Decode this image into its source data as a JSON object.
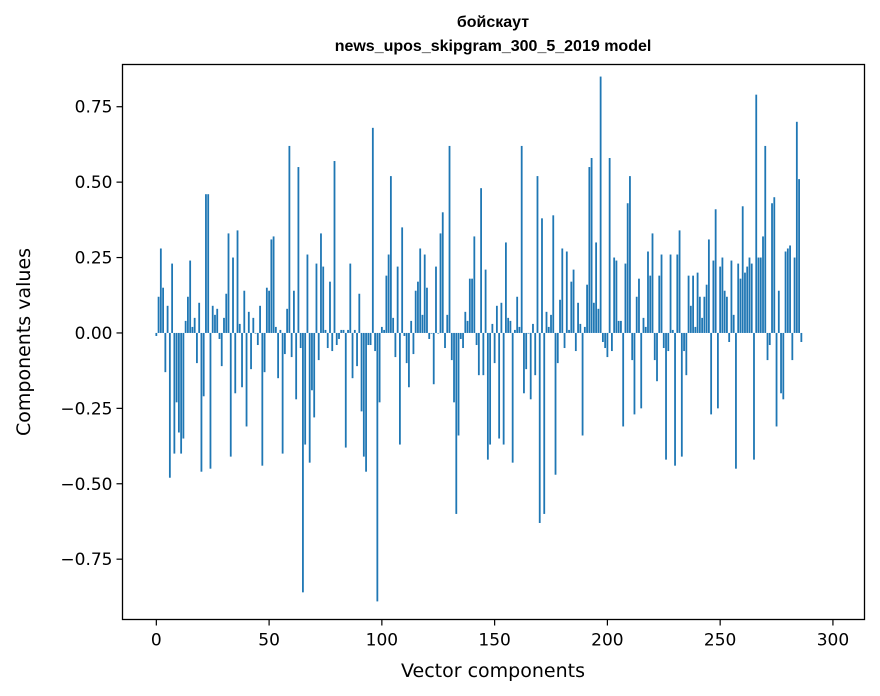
{
  "chart_data": {
    "type": "bar",
    "title": "бойскаут",
    "subtitle": "news_upos_skipgram_300_5_2019 model",
    "xlabel": "Vector components",
    "ylabel": "Components values",
    "xlim": [
      -15,
      314
    ],
    "ylim": [
      -0.95,
      0.89
    ],
    "xticks": [
      0,
      50,
      100,
      150,
      200,
      250,
      300
    ],
    "yticks": [
      -0.75,
      -0.5,
      -0.25,
      0.0,
      0.25,
      0.5,
      0.75
    ],
    "ytick_labels": [
      "−0.75",
      "−0.50",
      "−0.25",
      "0.00",
      "0.25",
      "0.50",
      "0.75"
    ],
    "grid": false,
    "bar_color": "#1f77b4",
    "x_start": 0,
    "values": [
      -0.01,
      0.12,
      0.28,
      0.15,
      -0.13,
      0.09,
      -0.48,
      0.23,
      -0.4,
      -0.23,
      -0.33,
      -0.4,
      -0.35,
      0.04,
      0.12,
      0.24,
      0.02,
      0.05,
      -0.1,
      0.1,
      -0.46,
      -0.21,
      0.46,
      0.46,
      -0.45,
      0.09,
      0.06,
      0.08,
      -0.02,
      -0.11,
      0.05,
      0.13,
      0.33,
      -0.41,
      0.25,
      -0.2,
      0.34,
      0.03,
      -0.18,
      0.14,
      -0.31,
      0.07,
      -0.12,
      0.05,
      0.0,
      -0.04,
      0.09,
      -0.44,
      -0.13,
      0.15,
      0.14,
      0.31,
      0.32,
      0.02,
      -0.15,
      0.01,
      -0.4,
      -0.07,
      0.08,
      0.62,
      -0.08,
      0.14,
      -0.22,
      0.55,
      -0.05,
      -0.86,
      -0.37,
      0.26,
      -0.43,
      -0.19,
      -0.28,
      0.23,
      -0.09,
      0.33,
      0.22,
      0.01,
      -0.05,
      0.17,
      -0.06,
      0.57,
      -0.04,
      -0.02,
      0.01,
      0.01,
      -0.38,
      0.01,
      0.23,
      -0.15,
      0.01,
      -0.11,
      0.13,
      -0.26,
      -0.41,
      -0.46,
      -0.04,
      -0.04,
      0.68,
      -0.06,
      -0.89,
      -0.23,
      0.02,
      0.01,
      0.19,
      0.26,
      0.52,
      0.05,
      -0.08,
      0.22,
      -0.37,
      0.35,
      -0.01,
      -0.1,
      -0.18,
      0.04,
      -0.07,
      0.14,
      0.17,
      0.28,
      0.06,
      0.26,
      0.15,
      -0.02,
      0.0,
      -0.17,
      0.22,
      0.0,
      0.33,
      0.4,
      -0.05,
      0.06,
      0.62,
      -0.09,
      -0.23,
      -0.6,
      -0.34,
      -0.02,
      -0.05,
      0.07,
      0.04,
      0.18,
      0.18,
      0.32,
      -0.04,
      -0.14,
      0.48,
      -0.14,
      0.21,
      -0.42,
      -0.37,
      0.03,
      -0.1,
      0.09,
      -0.35,
      0.1,
      -0.37,
      0.3,
      0.05,
      0.04,
      -0.43,
      0.01,
      0.12,
      0.02,
      0.62,
      -0.2,
      -0.12,
      0.0,
      -0.22,
      0.03,
      -0.14,
      0.52,
      -0.63,
      0.38,
      -0.6,
      0.07,
      0.02,
      0.06,
      0.39,
      -0.47,
      -0.1,
      0.11,
      0.28,
      -0.05,
      0.27,
      0.01,
      0.17,
      0.21,
      -0.06,
      0.1,
      0.03,
      -0.34,
      0.02,
      0.16,
      0.55,
      0.58,
      0.1,
      0.3,
      0.08,
      0.85,
      -0.03,
      -0.05,
      -0.08,
      0.58,
      -0.06,
      0.25,
      0.24,
      0.04,
      0.04,
      -0.31,
      0.23,
      0.43,
      0.52,
      -0.09,
      -0.27,
      0.12,
      0.18,
      -0.25,
      0.05,
      0.02,
      0.27,
      0.19,
      0.33,
      -0.09,
      -0.16,
      0.19,
      0.26,
      -0.05,
      -0.42,
      -0.06,
      0.26,
      0.01,
      -0.44,
      0.26,
      0.34,
      -0.41,
      -0.06,
      -0.14,
      0.19,
      0.09,
      0.19,
      0.02,
      0.2,
      0.12,
      0.05,
      0.12,
      0.16,
      0.31,
      -0.27,
      0.24,
      0.41,
      -0.25,
      0.22,
      0.25,
      0.14,
      0.12,
      -0.03,
      0.24,
      0.06,
      -0.45,
      0.23,
      0.18,
      0.42,
      0.2,
      0.22,
      0.25,
      0.23,
      -0.42,
      0.79,
      0.25,
      0.25,
      0.32,
      0.62,
      -0.09,
      -0.04,
      0.43,
      0.45,
      -0.31,
      0.14,
      -0.2,
      -0.22,
      0.27,
      0.28,
      0.29,
      -0.09,
      0.25,
      0.7,
      0.51,
      -0.03
    ]
  }
}
